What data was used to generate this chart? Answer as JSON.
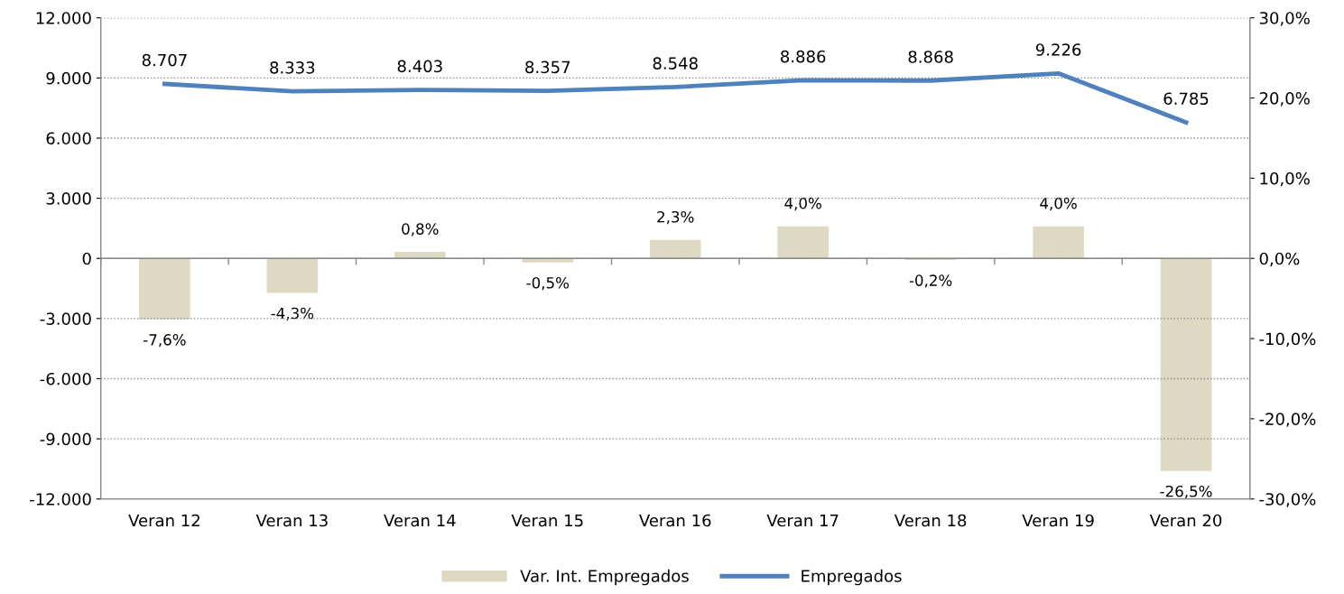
{
  "chart_data": {
    "type": "bar",
    "categories": [
      "Veran 12",
      "Veran 13",
      "Veran 14",
      "Veran 15",
      "Veran 16",
      "Veran 17",
      "Veran 18",
      "Veran 19",
      "Veran 20"
    ],
    "series": [
      {
        "name": "Var. Int. Empregados",
        "axis": "y2",
        "color": "#ddd9c3",
        "values": [
          -7.6,
          -4.3,
          0.8,
          -0.5,
          2.3,
          4.0,
          -0.2,
          4.0,
          -26.5
        ],
        "value_labels": [
          "-7,6%",
          "-4,3%",
          "0,8%",
          "-0,5%",
          "2,3%",
          "4,0%",
          "-0,2%",
          "4,0%",
          "-26,5%"
        ]
      },
      {
        "name": "Empregados",
        "type": "line",
        "color": "#4f81bd",
        "values": [
          8707,
          8333,
          8403,
          8357,
          8548,
          8886,
          8868,
          9226,
          6785
        ],
        "value_labels": [
          "8.707",
          "8.333",
          "8.403",
          "8.357",
          "8.548",
          "8.886",
          "8.868",
          "9.226",
          "6.785"
        ]
      }
    ],
    "ylim": [
      -12000,
      12000
    ],
    "yticks": [
      {
        "value": -12000,
        "label": "-12.000"
      },
      {
        "value": -9000,
        "label": "-9.000"
      },
      {
        "value": -6000,
        "label": "-6.000"
      },
      {
        "value": -3000,
        "label": "-3.000"
      },
      0,
      {
        "value": 3000,
        "label": "3.000"
      },
      {
        "value": 6000,
        "label": "6.000"
      },
      {
        "value": 9000,
        "label": "9.000"
      },
      {
        "value": 12000,
        "label": "12.000"
      }
    ],
    "y2lim": [
      -30,
      30
    ],
    "y2ticks": [
      {
        "value": -30,
        "label": "-30,0%"
      },
      {
        "value": -20,
        "label": "-20,0%"
      },
      {
        "value": -10,
        "label": "-10,0%"
      },
      {
        "value": 0,
        "label": "0,0%"
      },
      {
        "value": 10,
        "label": "10,0%"
      },
      {
        "value": 20,
        "label": "20,0%"
      },
      {
        "value": 30,
        "label": "30,0%"
      }
    ],
    "grid": "y",
    "legend": "bottom"
  }
}
